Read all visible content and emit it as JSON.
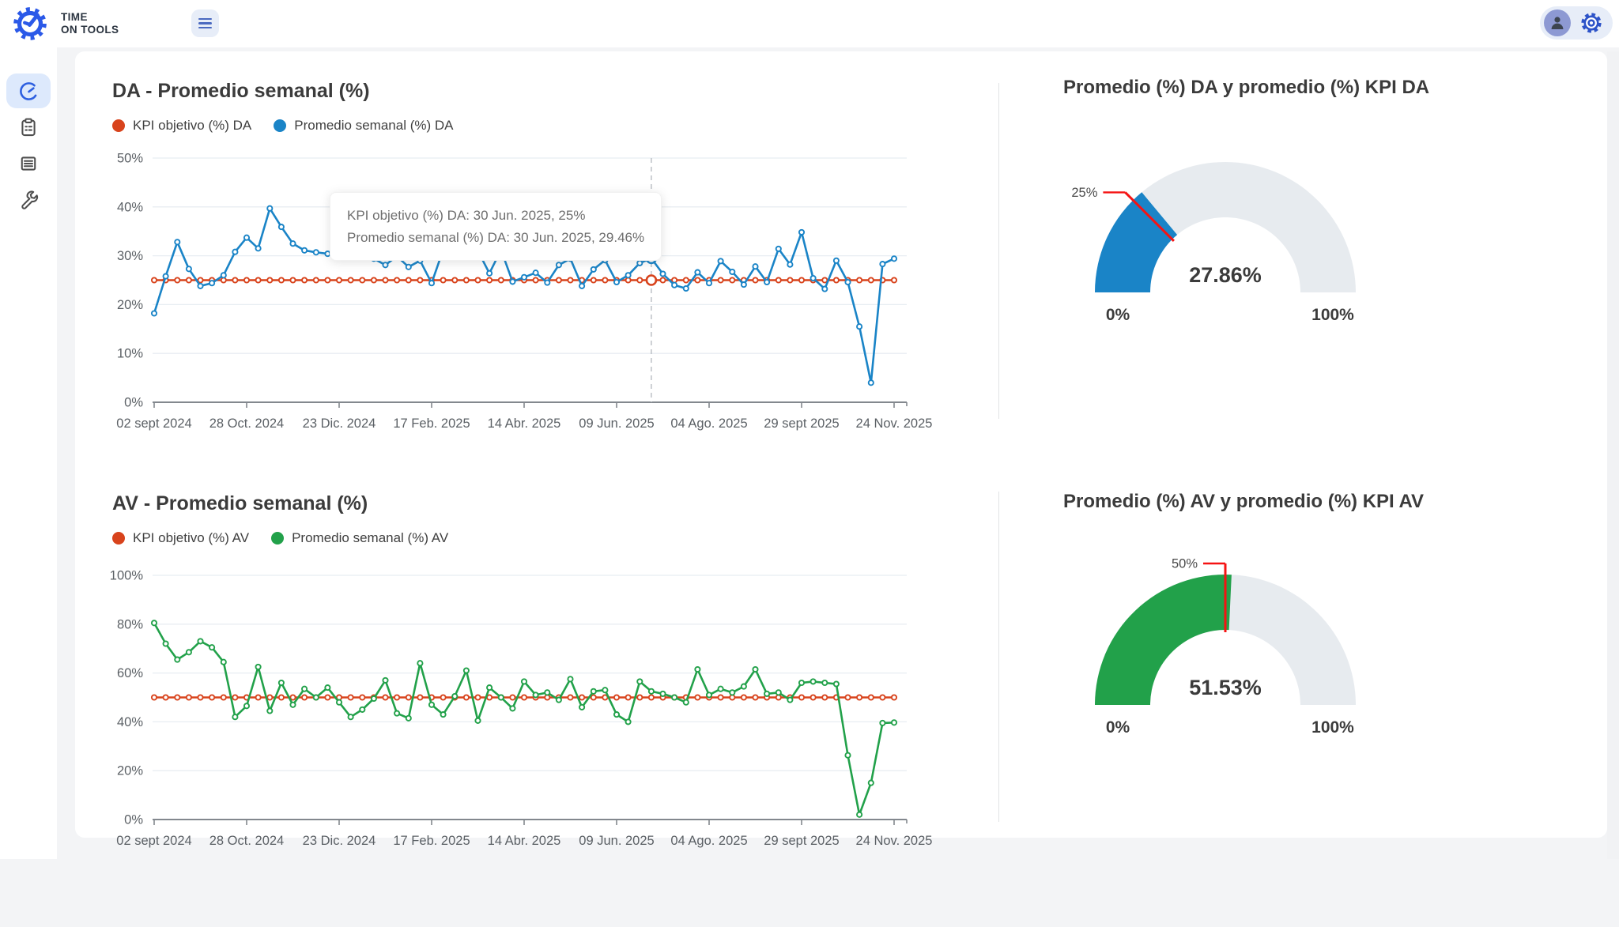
{
  "app": {
    "brand_line1": "TIME",
    "brand_line2": "ON TOOLS"
  },
  "topbar": {
    "menu_icon": "hamburger-icon",
    "user_icon": "user-avatar-icon",
    "settings_icon": "gear-icon"
  },
  "sidebar": {
    "items": [
      {
        "id": "dashboard",
        "icon": "speedometer-icon",
        "active": true
      },
      {
        "id": "tasks",
        "icon": "clipboard-icon",
        "active": false
      },
      {
        "id": "reports",
        "icon": "list-icon",
        "active": false
      },
      {
        "id": "tools",
        "icon": "wrench-icon",
        "active": false
      }
    ]
  },
  "chart_data": [
    {
      "type": "line",
      "title": "DA - Promedio semanal (%)",
      "y": {
        "max": 50,
        "step": 10,
        "suffix": "%"
      },
      "x": {
        "labels": [
          "02 sept 2024",
          "28 Oct. 2024",
          "23 Dic. 2024",
          "17 Feb. 2025",
          "14 Abr. 2025",
          "09 Jun. 2025",
          "04 Ago. 2025",
          "29 sept 2025",
          "24 Nov. 2025"
        ],
        "tick_indices": [
          0,
          8,
          16,
          24,
          32,
          40,
          48,
          56,
          64
        ]
      },
      "series": [
        {
          "name": "KPI objetivo (%) DA",
          "color": "#d8431c",
          "constant": 25
        },
        {
          "name": "Promedio semanal (%) DA",
          "color": "#1a84c7",
          "values": [
            18.2,
            25.8,
            32.8,
            27.3,
            23.8,
            24.4,
            26.0,
            30.8,
            33.7,
            31.5,
            39.7,
            35.9,
            32.5,
            31.1,
            30.7,
            30.4,
            32.3,
            34.0,
            31.6,
            29.4,
            28.1,
            29.9,
            27.7,
            29.0,
            24.4,
            31.2,
            30.7,
            33.6,
            31.0,
            26.4,
            31.2,
            24.7,
            25.6,
            26.5,
            24.5,
            28.1,
            29.4,
            23.8,
            27.2,
            29.1,
            24.6,
            26.0,
            28.5,
            29.46,
            26.3,
            24.0,
            23.3,
            26.6,
            24.4,
            28.9,
            26.7,
            24.1,
            27.8,
            24.6,
            31.4,
            28.2,
            34.8,
            25.4,
            23.2,
            29.0,
            24.6,
            15.5,
            4.0,
            28.3,
            29.4
          ]
        }
      ],
      "crosshair_index": 43,
      "tooltip": {
        "lines": [
          "KPI objetivo (%) DA: 30 Jun. 2025, 25%",
          "Promedio semanal (%) DA: 30 Jun. 2025, 29.46%"
        ]
      }
    },
    {
      "type": "line",
      "title": "AV - Promedio semanal (%)",
      "y": {
        "max": 100,
        "step": 20,
        "suffix": "%"
      },
      "x": {
        "labels": [
          "02 sept 2024",
          "28 Oct. 2024",
          "23 Dic. 2024",
          "17 Feb. 2025",
          "14 Abr. 2025",
          "09 Jun. 2025",
          "04 Ago. 2025",
          "29 sept 2025",
          "24 Nov. 2025"
        ],
        "tick_indices": [
          0,
          8,
          16,
          24,
          32,
          40,
          48,
          56,
          64
        ]
      },
      "series": [
        {
          "name": "KPI objetivo (%) AV",
          "color": "#d8431c",
          "constant": 50
        },
        {
          "name": "Promedio semanal (%) AV",
          "color": "#22a14a",
          "values": [
            80.5,
            72.0,
            65.5,
            68.5,
            73.0,
            70.5,
            64.5,
            42.0,
            46.5,
            62.5,
            44.5,
            56.0,
            47.0,
            53.5,
            50.0,
            54.0,
            48.0,
            42.0,
            45.0,
            49.5,
            57.0,
            43.5,
            41.5,
            64.0,
            47.0,
            43.0,
            50.5,
            61.0,
            40.5,
            54.0,
            50.0,
            45.5,
            56.5,
            51.0,
            52.0,
            49.0,
            57.5,
            46.0,
            52.5,
            53.0,
            43.0,
            40.0,
            56.5,
            52.5,
            51.5,
            50.0,
            48.0,
            61.5,
            51.0,
            53.5,
            52.0,
            54.5,
            61.5,
            51.5,
            52.0,
            49.0,
            56.0,
            56.5,
            56.0,
            55.5,
            26.3,
            2.0,
            15.0,
            39.5,
            39.7
          ]
        }
      ],
      "crosshair_index": null,
      "tooltip": null
    }
  ],
  "gauges": [
    {
      "title": "Promedio (%) DA y promedio (%) KPI DA",
      "value": 27.86,
      "value_label": "27.86%",
      "min_label": "0%",
      "max_label": "100%",
      "threshold": 25,
      "threshold_label": "25%",
      "color": "#1a84c7",
      "track_color": "#e7ebef",
      "threshold_color": "#f51313"
    },
    {
      "title": "Promedio (%) AV y promedio (%) KPI AV",
      "value": 51.53,
      "value_label": "51.53%",
      "min_label": "0%",
      "max_label": "100%",
      "threshold": 50,
      "threshold_label": "50%",
      "color": "#22a14a",
      "track_color": "#e7ebef",
      "threshold_color": "#f51313"
    }
  ]
}
